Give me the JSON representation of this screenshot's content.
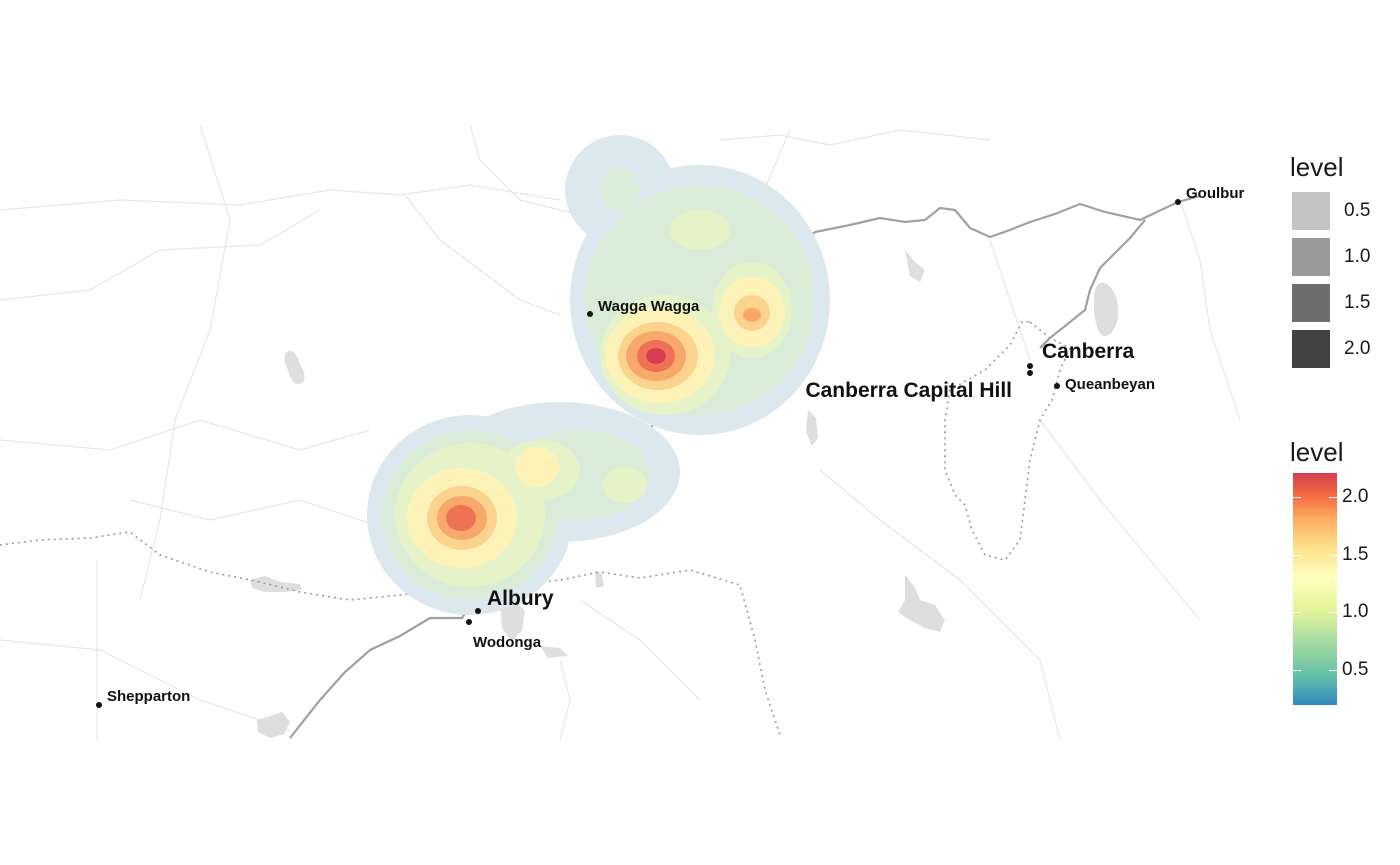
{
  "map": {
    "places": [
      {
        "key": "wagga",
        "name": "Wagga Wagga"
      },
      {
        "key": "canberra",
        "name": "Canberra"
      },
      {
        "key": "capital_hill",
        "name": "Canberra Capital Hill"
      },
      {
        "key": "queanbeyan",
        "name": "Queanbeyan"
      },
      {
        "key": "goulburn",
        "name": "Goulbur"
      },
      {
        "key": "albury",
        "name": "Albury"
      },
      {
        "key": "wodonga",
        "name": "Wodonga"
      },
      {
        "key": "shepparton",
        "name": "Shepparton"
      }
    ],
    "density_colors": [
      "#dbe8f0",
      "#d9ecd7",
      "#e6f3c8",
      "#fdf3b9",
      "#fbd38f",
      "#f8a86a",
      "#ee7355",
      "#d63f51"
    ]
  },
  "legend_alpha": {
    "title": "level",
    "items": [
      {
        "label": "0.5",
        "color": "#c4c4c4"
      },
      {
        "label": "1.0",
        "color": "#9a9a9a"
      },
      {
        "label": "1.5",
        "color": "#6d6d6d"
      },
      {
        "label": "2.0",
        "color": "#424242"
      }
    ]
  },
  "legend_fill": {
    "title": "level",
    "palette": [
      "#3288bd",
      "#66c2a5",
      "#abdda4",
      "#e6f598",
      "#ffffbf",
      "#fee08b",
      "#fdae61",
      "#f46d43",
      "#d53e4f"
    ],
    "range": [
      0.2,
      2.2
    ],
    "ticks": [
      "2.0",
      "1.5",
      "1.0",
      "0.5"
    ]
  }
}
